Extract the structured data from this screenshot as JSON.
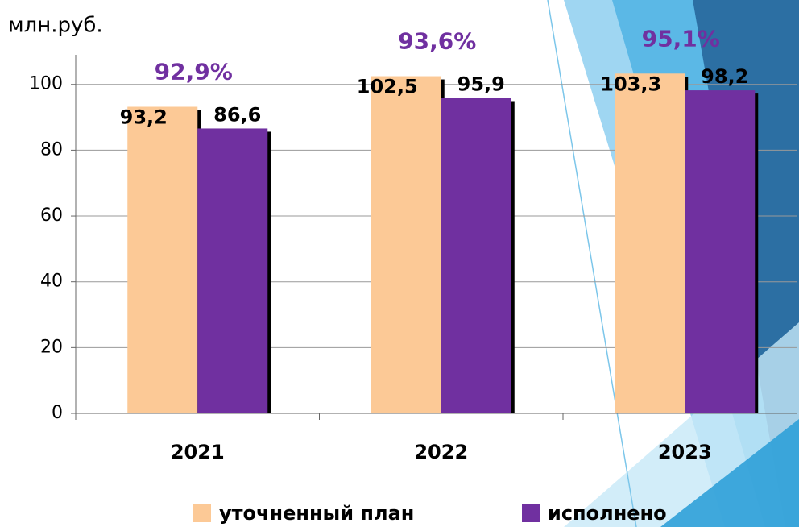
{
  "chart_data": {
    "type": "bar",
    "y_label": "млн.руб.",
    "categories": [
      "2021",
      "2022",
      "2023"
    ],
    "series": [
      {
        "name": "уточненный план",
        "color": "#fcc996",
        "values": [
          93.2,
          102.5,
          103.3
        ],
        "value_labels": [
          "93,2",
          "102,5",
          "103,3"
        ]
      },
      {
        "name": "исполнено",
        "color": "#7030a0",
        "values": [
          86.6,
          95.9,
          98.2
        ],
        "value_labels": [
          "86,6",
          "95,9",
          "98,2"
        ]
      }
    ],
    "annotations": [
      "92,9%",
      "93,6%",
      "95,1%"
    ],
    "ylim": [
      0,
      109
    ],
    "yticks": [
      0,
      20,
      40,
      60,
      80,
      100
    ],
    "grid": true,
    "legend": "bottom"
  }
}
